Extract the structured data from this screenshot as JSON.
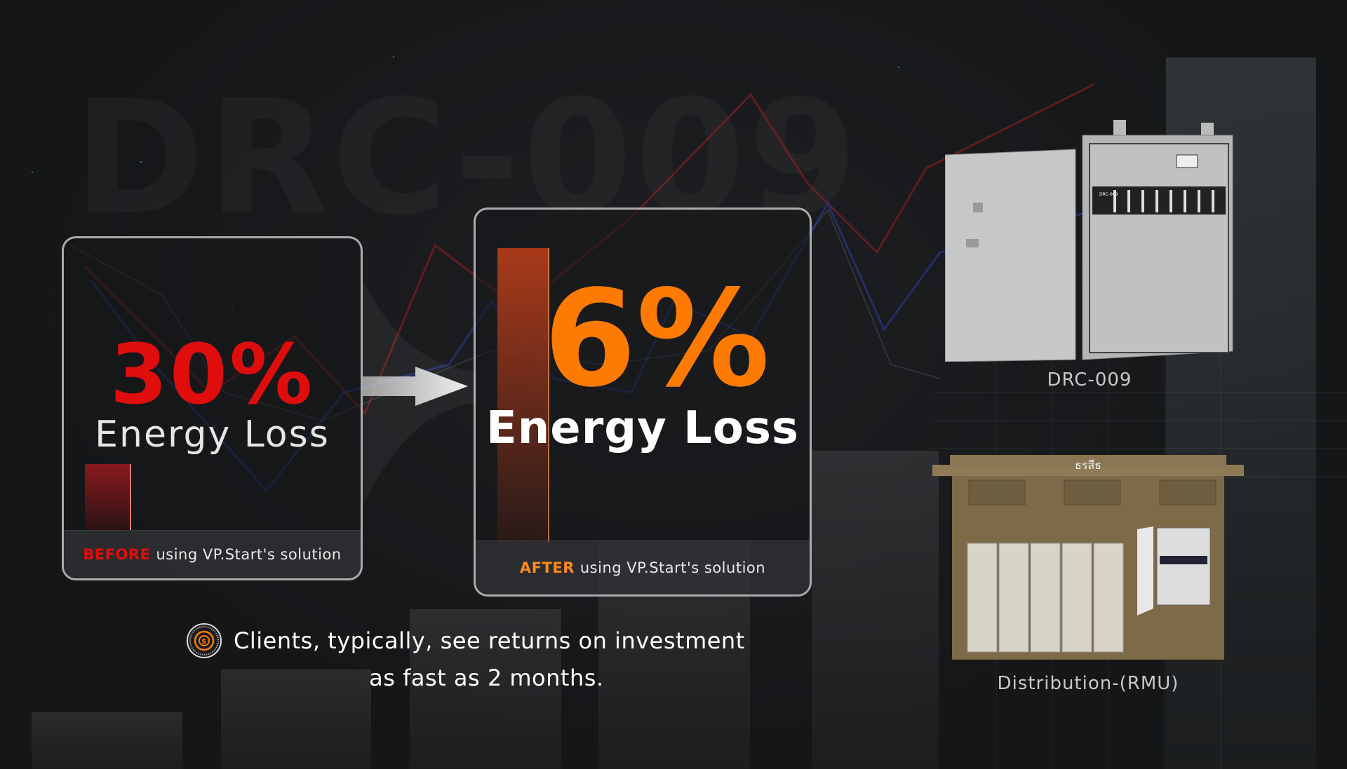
{
  "watermark": "DRC-009",
  "before_card": {
    "value": "30%",
    "label": "Energy Loss",
    "footer_highlight": "BEFORE",
    "footer_text": "using VP.Start's solution",
    "highlight_color": "#e00d0d",
    "bar_level_percent": 30
  },
  "after_card": {
    "value": "6%",
    "label": "Energy Loss",
    "footer_highlight": "AFTER",
    "footer_text": "using VP.Start's solution",
    "highlight_color": "#ff7a00"
  },
  "roi": {
    "icon": "money-cycle-icon",
    "line1": "Clients, typically, see returns on investment",
    "line2": "as fast as 2 months."
  },
  "products": [
    {
      "label": "DRC-009",
      "panel_text": "DRC-009"
    },
    {
      "label": "Distribution-(RMU)",
      "sign_text": "ธรสีธ"
    }
  ]
}
